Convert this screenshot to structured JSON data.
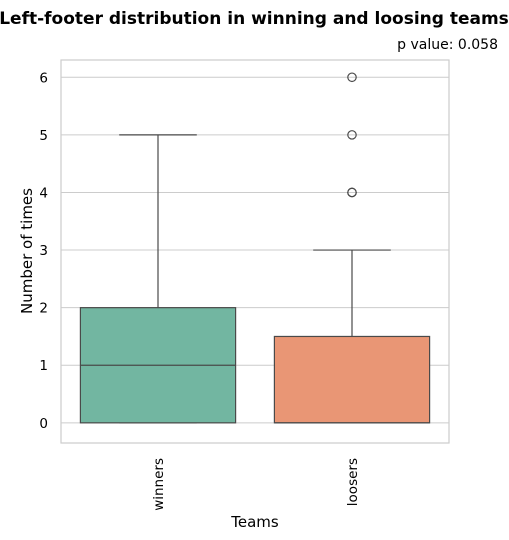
{
  "chart_data": {
    "type": "box",
    "title": "Left-footer distribution in winning and loosing teams",
    "subtitle": "p value: 0.058",
    "xlabel": "Teams",
    "ylabel": "Number of times",
    "ylim": [
      -0.35,
      6.3
    ],
    "yticks": [
      "0",
      "1",
      "2",
      "3",
      "4",
      "5",
      "6"
    ],
    "categories": [
      "winners",
      "loosers"
    ],
    "grid": "horizontal",
    "boxes": [
      {
        "category": "winners",
        "color": "#72b6a1",
        "whisker_low": 0,
        "q1": 0,
        "median": 1,
        "q3": 2,
        "whisker_high": 5,
        "outliers": []
      },
      {
        "category": "loosers",
        "color": "#e99675",
        "whisker_low": 0,
        "q1": 0,
        "median": 0,
        "q3": 1.5,
        "whisker_high": 3,
        "outliers": [
          4,
          4,
          5,
          6
        ]
      }
    ]
  }
}
